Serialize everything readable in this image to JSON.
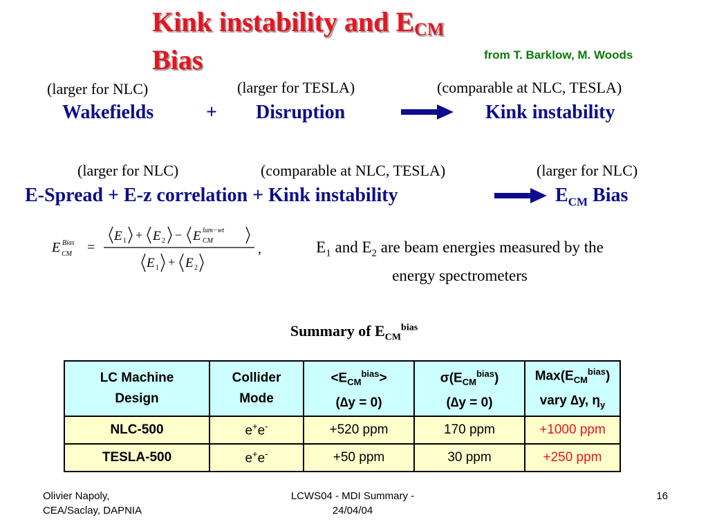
{
  "title": {
    "main": "Kink instability and E",
    "sub": "CM",
    "line2": "Bias"
  },
  "credit": "from T. Barklow, M. Woods",
  "row1": {
    "note_a": "(larger for NLC)",
    "note_b": "(larger for TESLA)",
    "note_c": "(comparable at NLC, TESLA)",
    "term_a": "Wakefields",
    "plus": "+",
    "term_b": "Disruption",
    "result": "Kink instability"
  },
  "row2": {
    "note_a": "(larger for NLC)",
    "note_b": "(comparable at NLC, TESLA)",
    "note_c": "(larger for NLC)",
    "expr": "E-Spread + E-z correlation + Kink instability",
    "result_main": "E",
    "result_sub": "CM",
    "result_tail": " Bias"
  },
  "equation": {
    "lhs_E": "E",
    "lhs_sup": "Bias",
    "lhs_sub": "CM",
    "equals": "=",
    "E": "E",
    "one": "1",
    "two": "2",
    "plus": "+",
    "minus": "−",
    "lumsup": "lum−wt",
    "cmsub": "CM",
    "comma": ","
  },
  "eq_text": {
    "e1": "E",
    "e1sub": "1",
    "and": " and E",
    "e2sub": "2",
    "rest": " are beam energies measured by the",
    "line2": "energy spectrometers"
  },
  "summary": {
    "label": "Summary of E",
    "sub": "CM",
    "sup": "bias"
  },
  "table": {
    "headers": {
      "machine_l1": "LC Machine",
      "machine_l2": "Design",
      "mode_l1": "Collider",
      "mode_l2": "Mode",
      "mean_pre": "<E",
      "mean_sub": "CM",
      "mean_sup": "bias",
      "mean_post": ">",
      "mean_l2": "(∆y = 0)",
      "sigma_pre": "σ(E",
      "sigma_sub": "CM",
      "sigma_sup": "bias",
      "sigma_post": ")",
      "sigma_l2": "(∆y = 0)",
      "max_pre": "Max(E",
      "max_sub": "CM",
      "max_sup": "bias",
      "max_post": ")",
      "max_l2": "vary ∆y, η",
      "max_l2_sub": "y"
    },
    "rows": [
      {
        "machine": "NLC-500",
        "mode_e1": "e",
        "mode_sup1": "+",
        "mode_e2": "e",
        "mode_sup2": "-",
        "mean": "+520 ppm",
        "sigma": "170 ppm",
        "max": "+1000 ppm"
      },
      {
        "machine": "TESLA-500",
        "mode_e1": "e",
        "mode_sup1": "+",
        "mode_e2": "e",
        "mode_sup2": "-",
        "mean": "+50 ppm",
        "sigma": "30 ppm",
        "max": "+250 ppm"
      }
    ]
  },
  "footer": {
    "left_l1": "Olivier Napoly,",
    "left_l2": "CEA/Saclay, DAPNIA",
    "center_l1": "LCWS04 - MDI Summary -",
    "center_l2": "24/04/04",
    "page": "16"
  },
  "colors": {
    "title_red": "#e8141e",
    "blue": "#0d0d8c",
    "green": "#0a7a0a",
    "arrow": "#0d0d8c",
    "header_bg": "#ccffff",
    "row_bg": "#ffffcc",
    "red_text": "#e8141e"
  }
}
